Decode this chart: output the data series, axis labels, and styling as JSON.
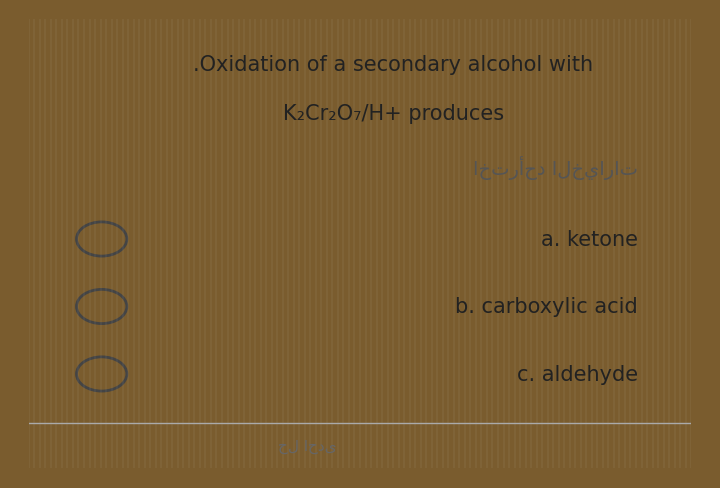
{
  "title_line1": ".Oxidation of a secondary alcohol with",
  "title_line2": "K₂Cr₂O₇/H+ produces",
  "arabic_text": "اخترأحد الخيارات",
  "options": [
    "a. ketone",
    "b. carboxylic acid",
    "c. aldehyde"
  ],
  "bg_color": "#e8e8e8",
  "border_color": "#7a5c2e",
  "text_color": "#222222",
  "arabic_color": "#555555",
  "circle_color": "#444444",
  "title_fontsize": 15,
  "option_fontsize": 15,
  "arabic_fontsize": 14,
  "bottom_text": "حل احدى",
  "bottom_text_color": "#666666"
}
